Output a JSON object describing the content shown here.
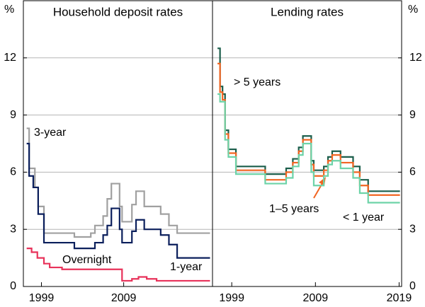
{
  "chart_data": [
    {
      "type": "step",
      "title": "Household deposit rates",
      "ylabel": "%",
      "yaxis_side": "left",
      "xlim": [
        1996.8,
        2019.8
      ],
      "xticks": [
        1999,
        2009
      ],
      "ylim": [
        0,
        15
      ],
      "yticks": [
        0,
        3,
        6,
        9,
        12
      ],
      "grid": true,
      "series": [
        {
          "name": "3-year",
          "color": "#a0a0a0",
          "x": [
            1997.2,
            1997.5,
            1998.2,
            1998.6,
            1999.3,
            2002,
            2003,
            2005,
            2005.5,
            2006.5,
            2007,
            2007.5,
            2008.5,
            2008.8,
            2010,
            2010.5,
            2011.5,
            2013.5,
            2014.5,
            2015.5,
            2019.5
          ],
          "values": [
            8.3,
            6.2,
            5.2,
            4.2,
            2.8,
            2.8,
            2.6,
            2.8,
            3.2,
            3.7,
            4.6,
            5.4,
            4.2,
            3.4,
            4.3,
            5.0,
            4.2,
            3.8,
            3.2,
            2.8,
            2.8
          ]
        },
        {
          "name": "1-year",
          "color": "#0b1f5c",
          "x": [
            1997.2,
            1997.5,
            1998.0,
            1998.6,
            1999.3,
            2002,
            2003,
            2005.5,
            2006.5,
            2007,
            2007.5,
            2008.5,
            2008.8,
            2010,
            2010.5,
            2011.5,
            2013.5,
            2014.5,
            2015.5,
            2019.5
          ],
          "values": [
            7.5,
            5.8,
            5.2,
            3.8,
            2.3,
            2.3,
            2.0,
            2.3,
            2.7,
            3.2,
            4.1,
            3.0,
            2.3,
            2.9,
            3.5,
            3.0,
            2.7,
            2.2,
            1.5,
            1.5
          ]
        },
        {
          "name": "Overnight",
          "color": "#e8325a",
          "x": [
            1997.2,
            1997.8,
            1998.5,
            1999.3,
            2000,
            2001.5,
            2003,
            2008.8,
            2010,
            2010.8,
            2011.8,
            2013,
            2019.5
          ],
          "values": [
            2.0,
            1.8,
            1.5,
            1.2,
            1.0,
            0.9,
            0.9,
            0.3,
            0.4,
            0.5,
            0.4,
            0.3,
            0.3
          ]
        }
      ]
    },
    {
      "type": "step",
      "title": "Lending rates",
      "ylabel": "%",
      "yaxis_side": "right",
      "xlim": [
        1996.7,
        2019.3
      ],
      "xticks": [
        1999,
        2009,
        2019
      ],
      "ylim": [
        0,
        15
      ],
      "yticks": [
        0,
        3,
        6,
        9,
        12
      ],
      "grid": true,
      "series": [
        {
          "name": "> 5 years",
          "color": "#1b5e4b",
          "x": [
            1997.3,
            1997.6,
            1997.9,
            1998.2,
            1998.6,
            1999.5,
            2003,
            2005.5,
            2006.3,
            2007,
            2007.5,
            2008.5,
            2008.8,
            2010,
            2010.5,
            2011,
            2012,
            2013.5,
            2014.3,
            2015.3,
            2019.1
          ],
          "values": [
            12.5,
            10.5,
            10.1,
            8.2,
            7.2,
            6.3,
            5.9,
            6.2,
            6.7,
            7.3,
            7.9,
            6.6,
            6.1,
            6.3,
            6.8,
            7.1,
            6.8,
            6.3,
            5.6,
            5.0,
            5.0
          ]
        },
        {
          "name": "1–5 years",
          "color": "#f26522",
          "x": [
            1997.3,
            1997.6,
            1997.9,
            1998.2,
            1998.6,
            1999.5,
            2003,
            2005.5,
            2006.3,
            2007,
            2007.5,
            2008.5,
            2008.8,
            2010,
            2010.5,
            2011,
            2012,
            2013.5,
            2014.3,
            2015.3,
            2019.1
          ],
          "values": [
            11.7,
            10.2,
            9.8,
            8.0,
            7.0,
            6.1,
            5.6,
            6.0,
            6.5,
            7.1,
            7.7,
            6.4,
            5.8,
            6.1,
            6.6,
            6.9,
            6.5,
            6.0,
            5.3,
            4.8,
            4.8
          ]
        },
        {
          "name": "< 1 year",
          "color": "#6dd3a8",
          "x": [
            1997.3,
            1997.6,
            1998.2,
            1998.6,
            1999.5,
            2003,
            2005.5,
            2006.3,
            2007,
            2007.5,
            2008.5,
            2008.8,
            2010,
            2010.5,
            2011,
            2012,
            2013.5,
            2014.3,
            2015.3,
            2019.1
          ],
          "values": [
            10.1,
            9.7,
            7.7,
            6.8,
            5.9,
            5.4,
            5.7,
            6.3,
            6.9,
            7.5,
            6.0,
            5.3,
            5.8,
            6.4,
            6.6,
            6.2,
            5.7,
            4.9,
            4.4,
            4.4
          ]
        }
      ]
    }
  ]
}
